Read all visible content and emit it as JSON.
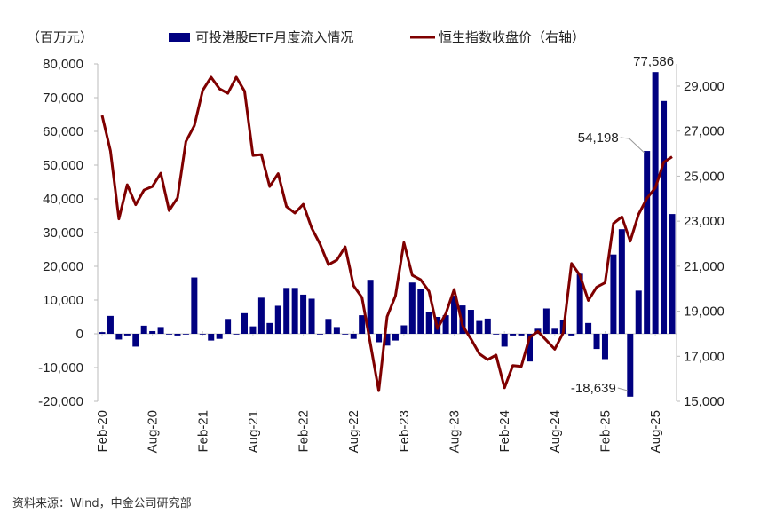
{
  "chart_data": {
    "type": "bar+line",
    "unit_label": "（百万元）",
    "categories": [
      "Feb-20",
      "Mar-20",
      "Apr-20",
      "May-20",
      "Jun-20",
      "Jul-20",
      "Aug-20",
      "Sep-20",
      "Oct-20",
      "Nov-20",
      "Dec-20",
      "Jan-21",
      "Feb-21",
      "Mar-21",
      "Apr-21",
      "May-21",
      "Jun-21",
      "Jul-21",
      "Aug-21",
      "Sep-21",
      "Oct-21",
      "Nov-21",
      "Dec-21",
      "Jan-22",
      "Feb-22",
      "Mar-22",
      "Apr-22",
      "May-22",
      "Jun-22",
      "Jul-22",
      "Aug-22",
      "Sep-22",
      "Oct-22",
      "Nov-22",
      "Dec-22",
      "Jan-23",
      "Feb-23",
      "Mar-23",
      "Apr-23",
      "May-23",
      "Jun-23",
      "Jul-23",
      "Aug-23",
      "Sep-23",
      "Oct-23",
      "Nov-23",
      "Dec-23",
      "Jan-24",
      "Feb-24",
      "Mar-24",
      "Apr-24",
      "May-24",
      "Jun-24",
      "Jul-24",
      "Aug-24",
      "Sep-24",
      "Oct-24",
      "Nov-24",
      "Dec-24",
      "Jan-25",
      "Feb-25",
      "Mar-25",
      "Apr-25",
      "May-25",
      "Jun-25",
      "Jul-25",
      "Aug-25",
      "Sep-25",
      "Oct-25"
    ],
    "x_tick_labels": [
      "Feb-20",
      "Aug-20",
      "Feb-21",
      "Aug-21",
      "Feb-22",
      "Aug-22",
      "Feb-23",
      "Aug-23",
      "Feb-24",
      "Aug-24",
      "Feb-25",
      "Aug-25"
    ],
    "series": [
      {
        "name": "可投港股ETF月度流入情况",
        "type": "bar",
        "axis": "left",
        "color": "#000080",
        "values": [
          500,
          5300,
          -1700,
          -500,
          -3800,
          2400,
          800,
          2000,
          0,
          -500,
          0,
          16700,
          0,
          -2000,
          -1500,
          4400,
          0,
          6100,
          2200,
          10700,
          3200,
          8300,
          13600,
          13600,
          11600,
          10400,
          0,
          4400,
          2000,
          0,
          -1500,
          5500,
          16000,
          -2500,
          -3500,
          -2000,
          2500,
          15200,
          13200,
          6400,
          5000,
          5500,
          11300,
          8400,
          7100,
          3800,
          4500,
          0,
          -3800,
          -500,
          -500,
          -8200,
          1500,
          7500,
          1500,
          4100,
          -500,
          17800,
          3200,
          -4500,
          -7500,
          23500,
          31000,
          -18639,
          12800,
          54198,
          77586,
          69000,
          35500
        ]
      },
      {
        "name": "恒生指数收盘价（右轴）",
        "type": "line",
        "axis": "right",
        "color": "#7f0000",
        "values": [
          27700,
          26120,
          23100,
          24620,
          23730,
          24380,
          24540,
          25130,
          23470,
          24040,
          26540,
          27240,
          28810,
          29400,
          28880,
          28680,
          29400,
          28770,
          25920,
          25960,
          24540,
          25110,
          23650,
          23360,
          23750,
          22700,
          21980,
          21070,
          21270,
          21860,
          20140,
          19610,
          17570,
          15470,
          18760,
          19680,
          22050,
          20600,
          20400,
          19880,
          18230,
          18890,
          19970,
          18360,
          17770,
          17110,
          16850,
          17050,
          15600,
          16590,
          16550,
          17840,
          18100,
          17710,
          17310,
          18040,
          21120,
          20600,
          19480,
          20070,
          20270,
          22900,
          23190,
          22110,
          23300,
          24020,
          24480,
          25620,
          25860
        ]
      }
    ],
    "left_axis": {
      "ylim": [
        -20000,
        80000
      ],
      "ticks": [
        "80,000",
        "70,000",
        "60,000",
        "50,000",
        "40,000",
        "30,000",
        "20,000",
        "10,000",
        "0",
        "-10,000",
        "-20,000"
      ]
    },
    "right_axis": {
      "ylim": [
        15000,
        29000
      ],
      "ticks": [
        "29,000",
        "27,000",
        "25,000",
        "23,000",
        "21,000",
        "19,000",
        "17,000",
        "15,000"
      ]
    },
    "annotations": [
      {
        "text": "77,586",
        "category": "Aug-25",
        "color": "#222222"
      },
      {
        "text": "54,198",
        "category": "Jul-25",
        "color": "#222222"
      },
      {
        "text": "-18,639",
        "category": "May-25",
        "color": "#e0405a"
      }
    ],
    "legend_position": "top",
    "grid": false
  },
  "source": "资料来源：Wind，中金公司研究部"
}
